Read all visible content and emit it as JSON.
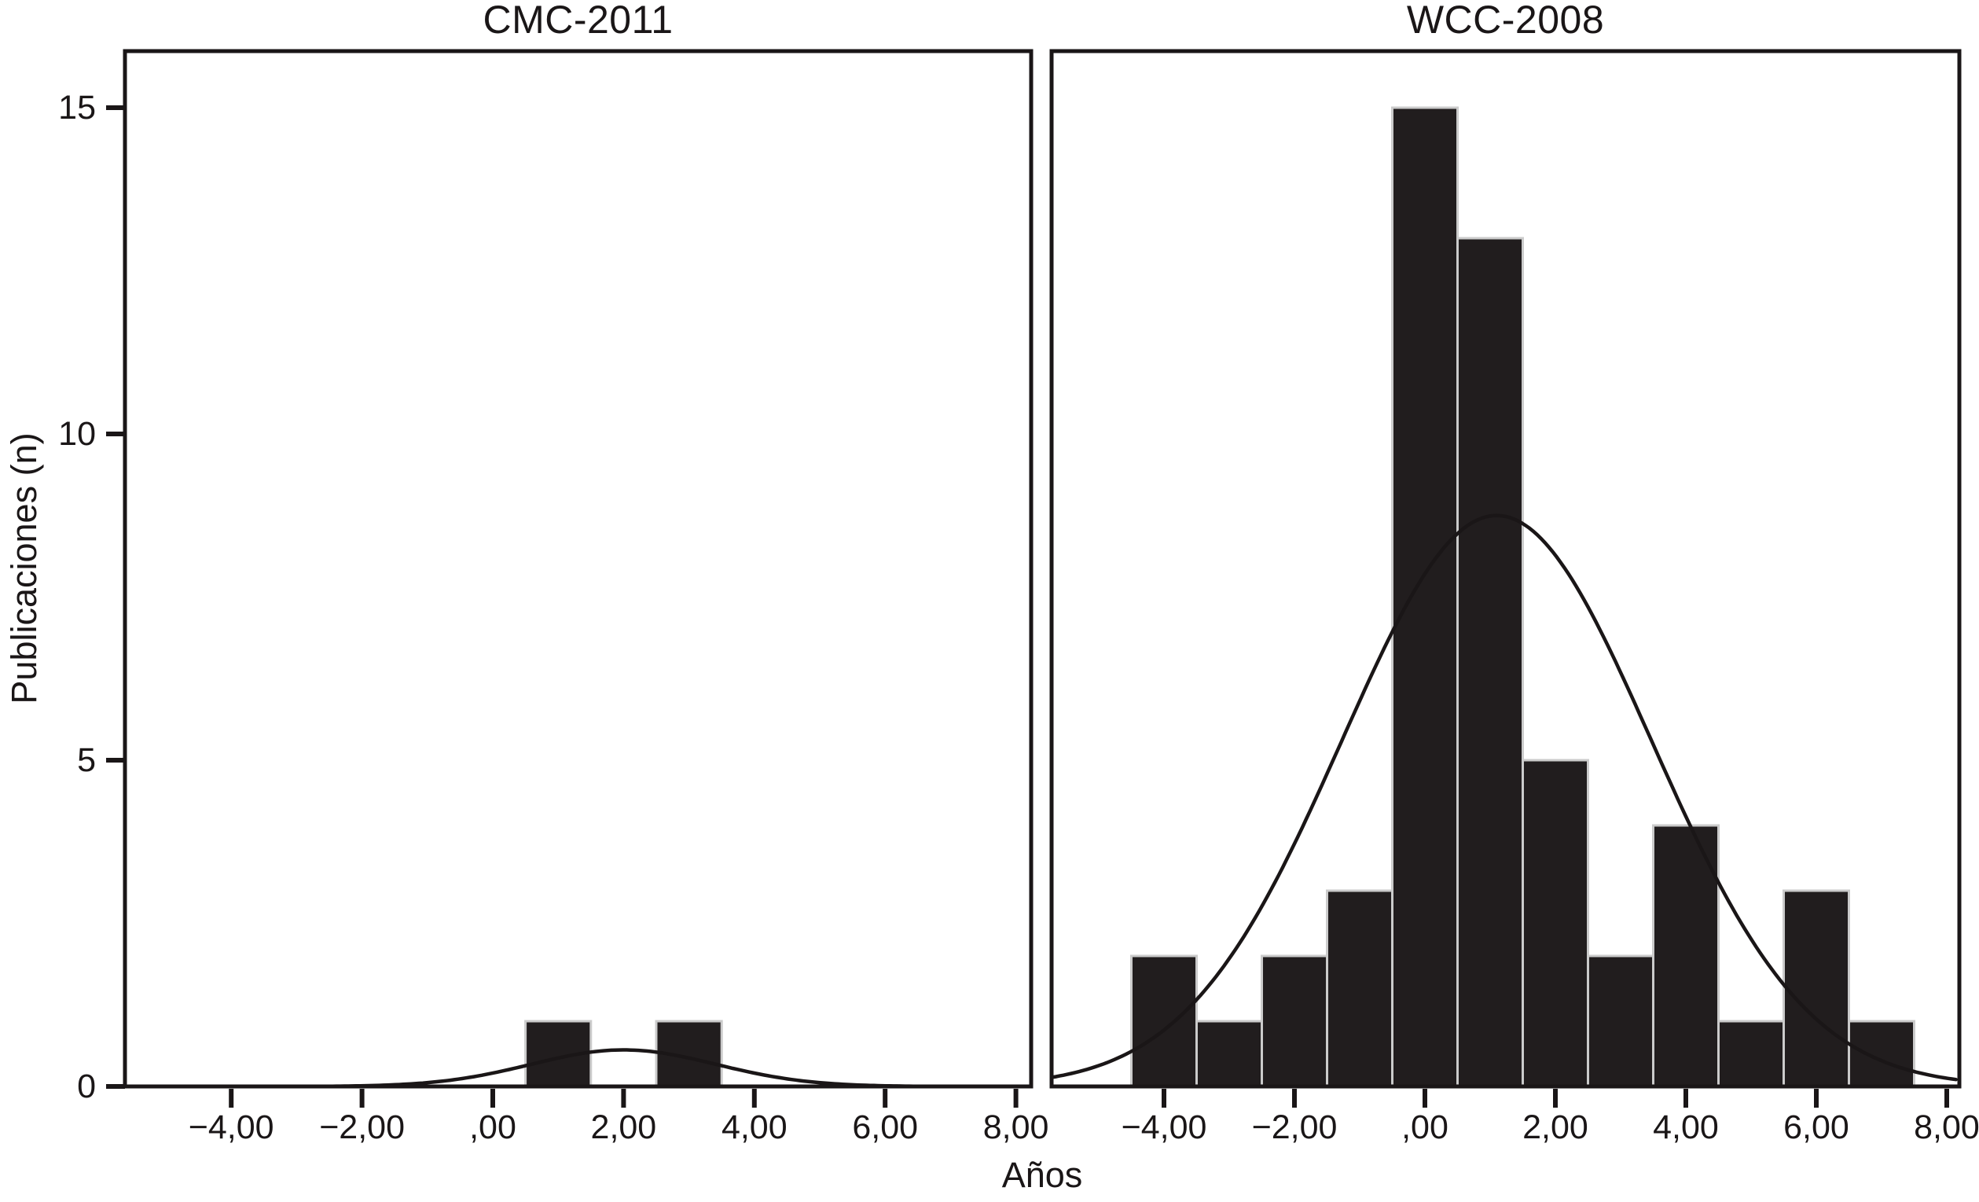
{
  "figure": {
    "xlabel": "Años",
    "ylabel": "Publicaciones (n)"
  },
  "chart_data": [
    {
      "type": "bar",
      "subtype": "histogram-with-normal-curve",
      "title": "CMC-2011",
      "xlabel": "Años",
      "ylabel": "Publicaciones (n)",
      "bin_width": 1,
      "bin_centers": [
        1,
        3
      ],
      "values": [
        1,
        1
      ],
      "normal_curve": {
        "mean": 2.0,
        "sd": 1.41,
        "peak_height": 0.56
      },
      "x_ticks": {
        "values": [
          -4,
          -2,
          0,
          2,
          4,
          6,
          8
        ],
        "labels": [
          "−4,00",
          "−2,00",
          ",00",
          "2,00",
          "4,00",
          "6,00",
          "8,00"
        ]
      },
      "y_ticks": {
        "values": [
          0,
          5,
          10,
          15
        ],
        "labels": [
          "0",
          "5",
          "10",
          "15"
        ]
      },
      "xlim": [
        -5.63,
        8.23
      ],
      "ylim": [
        0,
        15.87
      ],
      "grid": false,
      "legend": false
    },
    {
      "type": "bar",
      "subtype": "histogram-with-normal-curve",
      "title": "WCC-2008",
      "xlabel": "Años",
      "ylabel": "Publicaciones (n)",
      "bin_width": 1,
      "bin_centers": [
        -4,
        -3,
        -2,
        -1,
        0,
        1,
        2,
        3,
        4,
        5,
        6,
        7
      ],
      "values": [
        2,
        1,
        2,
        3,
        15,
        13,
        5,
        2,
        4,
        1,
        3,
        1
      ],
      "normal_curve": {
        "mean": 1.1,
        "sd": 2.37,
        "peak_height": 8.75
      },
      "x_ticks": {
        "values": [
          -4,
          -2,
          0,
          2,
          4,
          6,
          8
        ],
        "labels": [
          "−4,00",
          "−2,00",
          ",00",
          "2,00",
          "4,00",
          "6,00",
          "8,00"
        ]
      },
      "y_ticks": {
        "values": [
          0,
          5,
          10,
          15
        ],
        "labels": [
          "0",
          "5",
          "10",
          "15"
        ]
      },
      "xlim": [
        -5.72,
        8.19
      ],
      "ylim": [
        0,
        15.87
      ],
      "grid": false,
      "legend": false
    }
  ],
  "style": {
    "bar_fill": "#211d1e",
    "bar_edge": "#cbcbcb",
    "ink": "#1a1617",
    "background": "#ffffff"
  }
}
